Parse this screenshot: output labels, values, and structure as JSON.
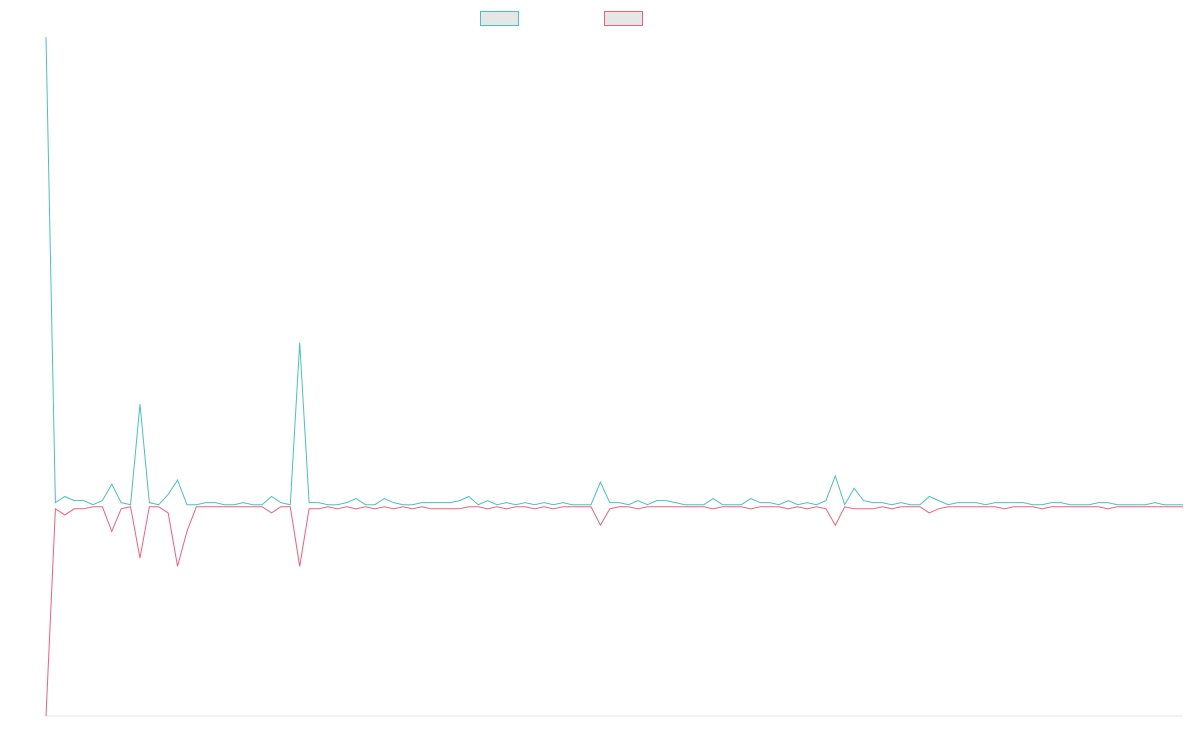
{
  "chart_data": {
    "type": "line",
    "title": "",
    "xlabel": "",
    "ylabel": "",
    "grid": false,
    "legend_position": "top-center",
    "ylim": [
      -1.03,
      2.28
    ],
    "x": [
      0,
      1,
      2,
      3,
      4,
      5,
      6,
      7,
      8,
      9,
      10,
      11,
      12,
      13,
      14,
      15,
      16,
      17,
      18,
      19,
      20,
      21,
      22,
      23,
      24,
      25,
      26,
      27,
      28,
      29,
      30,
      31,
      32,
      33,
      34,
      35,
      36,
      37,
      38,
      39,
      40,
      41,
      42,
      43,
      44,
      45,
      46,
      47,
      48,
      49,
      50,
      51,
      52,
      53,
      54,
      55,
      56,
      57,
      58,
      59,
      60,
      61,
      62,
      63,
      64,
      65,
      66,
      67,
      68,
      69,
      70,
      71,
      72,
      73,
      74,
      75,
      76,
      77,
      78,
      79,
      80,
      81,
      82,
      83,
      84,
      85,
      86,
      87,
      88,
      89,
      90,
      91,
      92,
      93,
      94,
      95,
      96,
      97,
      98,
      99,
      100,
      101,
      102,
      103,
      104,
      105,
      106,
      107,
      108,
      109,
      110,
      111,
      112,
      113,
      114,
      115,
      116,
      117,
      118,
      119,
      120,
      121
    ],
    "series": [
      {
        "name": "",
        "color": "#4bc0c0",
        "values": [
          2.28,
          0.01,
          0.04,
          0.02,
          0.02,
          0.0,
          0.02,
          0.1,
          0.01,
          0.0,
          0.49,
          0.01,
          0.0,
          0.05,
          0.12,
          0.0,
          0.0,
          0.01,
          0.01,
          0.0,
          0.0,
          0.01,
          0.0,
          0.0,
          0.04,
          0.01,
          0.0,
          0.79,
          0.01,
          0.01,
          0.0,
          0.0,
          0.01,
          0.03,
          0.0,
          0.0,
          0.03,
          0.01,
          0.0,
          0.0,
          0.01,
          0.01,
          0.01,
          0.01,
          0.02,
          0.04,
          0.0,
          0.02,
          0.0,
          0.01,
          0.0,
          0.01,
          0.0,
          0.01,
          0.0,
          0.01,
          0.0,
          0.0,
          0.0,
          0.11,
          0.01,
          0.01,
          0.0,
          0.02,
          0.0,
          0.02,
          0.02,
          0.01,
          0.0,
          0.0,
          0.0,
          0.03,
          0.0,
          0.0,
          0.0,
          0.03,
          0.01,
          0.01,
          0.0,
          0.02,
          0.0,
          0.01,
          0.0,
          0.02,
          0.14,
          0.0,
          0.08,
          0.02,
          0.01,
          0.01,
          0.0,
          0.01,
          0.0,
          0.0,
          0.04,
          0.02,
          0.0,
          0.01,
          0.01,
          0.01,
          0.0,
          0.01,
          0.01,
          0.01,
          0.01,
          0.0,
          0.0,
          0.01,
          0.01,
          0.0,
          0.0,
          0.0,
          0.01,
          0.01,
          0.0,
          0.0,
          0.0,
          0.0,
          0.01,
          0.0,
          0.0,
          0.0
        ]
      },
      {
        "name": "",
        "color": "#f0607c",
        "values": [
          -1.03,
          -0.02,
          -0.05,
          -0.02,
          -0.02,
          -0.01,
          -0.01,
          -0.13,
          -0.02,
          -0.01,
          -0.26,
          -0.01,
          -0.01,
          -0.04,
          -0.3,
          -0.13,
          -0.01,
          -0.01,
          -0.01,
          -0.01,
          -0.01,
          -0.01,
          -0.01,
          -0.01,
          -0.04,
          -0.01,
          -0.01,
          -0.3,
          -0.02,
          -0.02,
          -0.01,
          -0.02,
          -0.01,
          -0.02,
          -0.01,
          -0.02,
          -0.01,
          -0.02,
          -0.01,
          -0.02,
          -0.01,
          -0.02,
          -0.02,
          -0.02,
          -0.02,
          -0.01,
          -0.01,
          -0.02,
          -0.01,
          -0.02,
          -0.01,
          -0.01,
          -0.02,
          -0.01,
          -0.02,
          -0.01,
          -0.01,
          -0.01,
          -0.01,
          -0.1,
          -0.02,
          -0.01,
          -0.01,
          -0.02,
          -0.01,
          -0.01,
          -0.01,
          -0.01,
          -0.01,
          -0.01,
          -0.01,
          -0.02,
          -0.01,
          -0.01,
          -0.01,
          -0.02,
          -0.01,
          -0.01,
          -0.01,
          -0.02,
          -0.01,
          -0.02,
          -0.01,
          -0.02,
          -0.1,
          -0.01,
          -0.02,
          -0.02,
          -0.02,
          -0.01,
          -0.02,
          -0.01,
          -0.01,
          -0.01,
          -0.04,
          -0.02,
          -0.01,
          -0.01,
          -0.01,
          -0.01,
          -0.01,
          -0.01,
          -0.02,
          -0.01,
          -0.01,
          -0.01,
          -0.02,
          -0.01,
          -0.01,
          -0.01,
          -0.01,
          -0.01,
          -0.01,
          -0.02,
          -0.01,
          -0.01,
          -0.01,
          -0.01,
          -0.01,
          -0.01,
          -0.01,
          -0.01
        ]
      }
    ]
  }
}
